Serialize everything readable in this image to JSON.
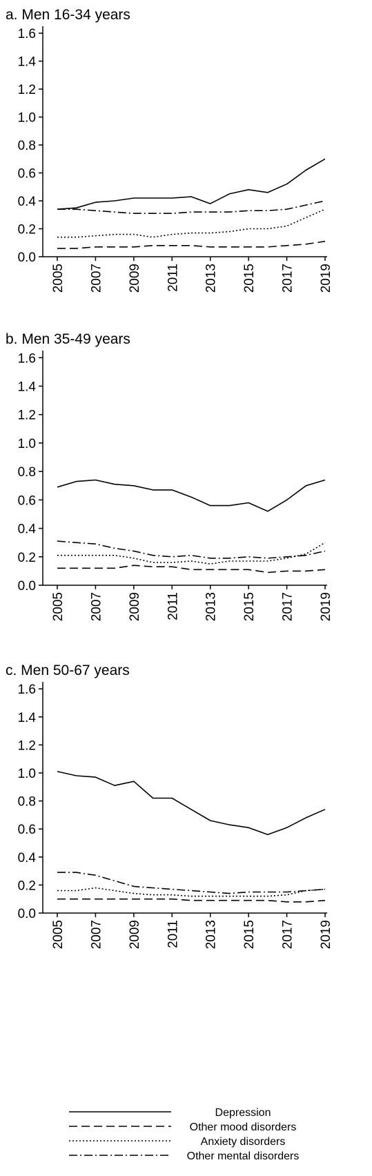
{
  "chart_data": [
    {
      "type": "line",
      "title": "a. Men 16-34 years",
      "x": [
        2005,
        2006,
        2007,
        2008,
        2009,
        2010,
        2011,
        2012,
        2013,
        2014,
        2015,
        2016,
        2017,
        2018,
        2019
      ],
      "x_tick_labels": [
        "2005",
        "2007",
        "2009",
        "2011",
        "2013",
        "2015",
        "2017",
        "2019"
      ],
      "y_tick_labels": [
        "0.0",
        "0.2",
        "0.4",
        "0.6",
        "0.8",
        "1.0",
        "1.2",
        "1.4",
        "1.6"
      ],
      "ylim": [
        0,
        1.65
      ],
      "grid": false,
      "series": [
        {
          "name": "Depression",
          "values": [
            0.34,
            0.35,
            0.39,
            0.4,
            0.42,
            0.42,
            0.42,
            0.43,
            0.38,
            0.45,
            0.48,
            0.46,
            0.52,
            0.62,
            0.7
          ]
        },
        {
          "name": "Other mood disorders",
          "values": [
            0.06,
            0.06,
            0.07,
            0.07,
            0.07,
            0.08,
            0.08,
            0.08,
            0.07,
            0.07,
            0.07,
            0.07,
            0.08,
            0.09,
            0.11
          ]
        },
        {
          "name": "Anxiety disorders",
          "values": [
            0.14,
            0.14,
            0.15,
            0.16,
            0.16,
            0.14,
            0.16,
            0.17,
            0.17,
            0.18,
            0.2,
            0.2,
            0.22,
            0.28,
            0.34
          ]
        },
        {
          "name": "Other mental disorders",
          "values": [
            0.34,
            0.34,
            0.33,
            0.32,
            0.31,
            0.31,
            0.31,
            0.32,
            0.32,
            0.32,
            0.33,
            0.33,
            0.34,
            0.37,
            0.4
          ]
        }
      ]
    },
    {
      "type": "line",
      "title": "b. Men 35-49 years",
      "x": [
        2005,
        2006,
        2007,
        2008,
        2009,
        2010,
        2011,
        2012,
        2013,
        2014,
        2015,
        2016,
        2017,
        2018,
        2019
      ],
      "x_tick_labels": [
        "2005",
        "2007",
        "2009",
        "2011",
        "2013",
        "2015",
        "2017",
        "2019"
      ],
      "y_tick_labels": [
        "0.0",
        "0.2",
        "0.4",
        "0.6",
        "0.8",
        "1.0",
        "1.2",
        "1.4",
        "1.6"
      ],
      "ylim": [
        0,
        1.65
      ],
      "grid": false,
      "series": [
        {
          "name": "Depression",
          "values": [
            0.69,
            0.73,
            0.74,
            0.71,
            0.7,
            0.67,
            0.67,
            0.62,
            0.56,
            0.56,
            0.58,
            0.52,
            0.6,
            0.7,
            0.74
          ]
        },
        {
          "name": "Other mood disorders",
          "values": [
            0.12,
            0.12,
            0.12,
            0.12,
            0.14,
            0.13,
            0.13,
            0.11,
            0.11,
            0.11,
            0.11,
            0.09,
            0.1,
            0.1,
            0.11
          ]
        },
        {
          "name": "Anxiety disorders",
          "values": [
            0.21,
            0.21,
            0.21,
            0.21,
            0.19,
            0.16,
            0.16,
            0.17,
            0.15,
            0.17,
            0.17,
            0.17,
            0.19,
            0.22,
            0.3
          ]
        },
        {
          "name": "Other mental disorders",
          "values": [
            0.31,
            0.3,
            0.29,
            0.26,
            0.24,
            0.21,
            0.2,
            0.21,
            0.19,
            0.19,
            0.2,
            0.19,
            0.2,
            0.21,
            0.24
          ]
        }
      ]
    },
    {
      "type": "line",
      "title": "c. Men 50-67 years",
      "x": [
        2005,
        2006,
        2007,
        2008,
        2009,
        2010,
        2011,
        2012,
        2013,
        2014,
        2015,
        2016,
        2017,
        2018,
        2019
      ],
      "x_tick_labels": [
        "2005",
        "2007",
        "2009",
        "2011",
        "2013",
        "2015",
        "2017",
        "2019"
      ],
      "y_tick_labels": [
        "0.0",
        "0.2",
        "0.4",
        "0.6",
        "0.8",
        "1.0",
        "1.2",
        "1.4",
        "1.6"
      ],
      "ylim": [
        0,
        1.65
      ],
      "grid": false,
      "series": [
        {
          "name": "Depression",
          "values": [
            1.01,
            0.98,
            0.97,
            0.91,
            0.94,
            0.82,
            0.82,
            0.74,
            0.66,
            0.63,
            0.61,
            0.56,
            0.61,
            0.68,
            0.74
          ]
        },
        {
          "name": "Other mood disorders",
          "values": [
            0.1,
            0.1,
            0.1,
            0.1,
            0.1,
            0.1,
            0.1,
            0.09,
            0.09,
            0.09,
            0.09,
            0.09,
            0.08,
            0.08,
            0.09
          ]
        },
        {
          "name": "Anxiety disorders",
          "values": [
            0.16,
            0.16,
            0.18,
            0.16,
            0.14,
            0.13,
            0.13,
            0.12,
            0.12,
            0.12,
            0.12,
            0.12,
            0.13,
            0.16,
            0.17
          ]
        },
        {
          "name": "Other mental disorders",
          "values": [
            0.29,
            0.29,
            0.27,
            0.23,
            0.19,
            0.18,
            0.17,
            0.16,
            0.15,
            0.14,
            0.15,
            0.15,
            0.15,
            0.16,
            0.17
          ]
        }
      ]
    }
  ],
  "legend": {
    "placement": "bottom",
    "items": [
      {
        "label": "Depression",
        "style": "solid"
      },
      {
        "label": "Other mood disorders",
        "style": "dashed"
      },
      {
        "label": "Anxiety disorders",
        "style": "dotted"
      },
      {
        "label": "Other mental disorders",
        "style": "dash-dot"
      }
    ]
  },
  "colors": {
    "line": "#000000",
    "background": "#ffffff"
  }
}
